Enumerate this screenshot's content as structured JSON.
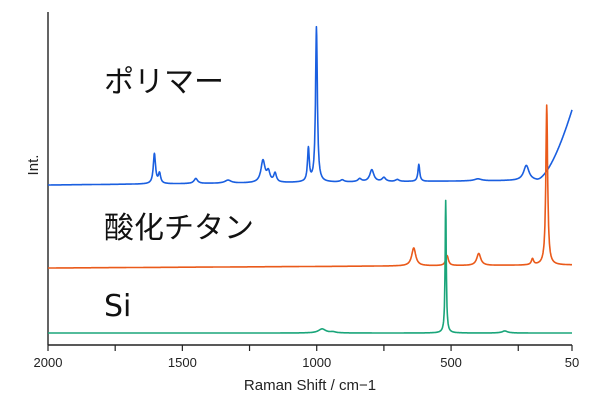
{
  "chart_data": {
    "type": "line",
    "title": "",
    "xlabel": "Raman Shift / cm−1",
    "ylabel": "Int.",
    "xlim": [
      2000,
      50
    ],
    "xticks": [
      2000,
      1500,
      1000,
      500,
      50
    ],
    "x_reversed": true,
    "grid": false,
    "legend": "none",
    "series": [
      {
        "name": "ポリマー",
        "color": "#1a5fe0",
        "baseline": 0.18,
        "slope_end": 0.05,
        "peaks": [
          {
            "x": 1604,
            "h": 0.3,
            "w": 5
          },
          {
            "x": 1585,
            "h": 0.1,
            "w": 5
          },
          {
            "x": 1450,
            "h": 0.05,
            "w": 8
          },
          {
            "x": 1330,
            "h": 0.03,
            "w": 14
          },
          {
            "x": 1200,
            "h": 0.22,
            "w": 9
          },
          {
            "x": 1180,
            "h": 0.1,
            "w": 7
          },
          {
            "x": 1155,
            "h": 0.09,
            "w": 6
          },
          {
            "x": 1031,
            "h": 0.33,
            "w": 4
          },
          {
            "x": 1001,
            "h": 1.55,
            "w": 4
          },
          {
            "x": 905,
            "h": 0.02,
            "w": 8
          },
          {
            "x": 840,
            "h": 0.03,
            "w": 8
          },
          {
            "x": 795,
            "h": 0.12,
            "w": 9
          },
          {
            "x": 750,
            "h": 0.04,
            "w": 8
          },
          {
            "x": 700,
            "h": 0.02,
            "w": 8
          },
          {
            "x": 620,
            "h": 0.17,
            "w": 4
          },
          {
            "x": 400,
            "h": 0.02,
            "w": 16
          },
          {
            "x": 220,
            "h": 0.15,
            "w": 12
          }
        ],
        "rise": {
          "from": 180,
          "to": 50,
          "top": 0.7
        }
      },
      {
        "name": "酸化チタン",
        "color": "#ea5a1a",
        "baseline": 0.0,
        "slope_end": 0.03,
        "peaks": [
          {
            "x": 639,
            "h": 0.18,
            "w": 9
          },
          {
            "x": 515,
            "h": 0.1,
            "w": 6
          },
          {
            "x": 397,
            "h": 0.12,
            "w": 9
          },
          {
            "x": 197,
            "h": 0.06,
            "w": 5
          },
          {
            "x": 144,
            "h": 1.6,
            "w": 4
          }
        ]
      },
      {
        "name": "Si",
        "color": "#1aa57a",
        "baseline": 0.0,
        "slope_end": 0.0,
        "peaks": [
          {
            "x": 980,
            "h": 0.04,
            "w": 16
          },
          {
            "x": 940,
            "h": 0.01,
            "w": 12
          },
          {
            "x": 520,
            "h": 1.3,
            "w": 2.5
          },
          {
            "x": 300,
            "h": 0.02,
            "w": 12
          }
        ]
      }
    ]
  },
  "labels": {
    "polymer": "ポリマー",
    "tio2": "酸化チタン",
    "si": "Si"
  }
}
